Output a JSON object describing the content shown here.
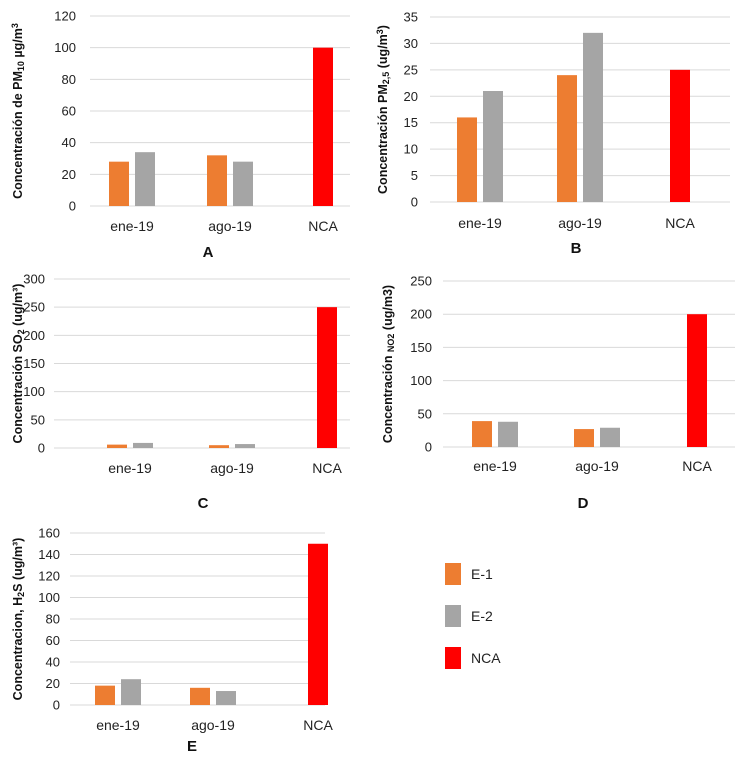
{
  "chart_data": [
    {
      "type": "bar",
      "panel_label": "A",
      "ylabel_parts": [
        {
          "text": "Concentración de PM",
          "style": ""
        },
        {
          "text": "10",
          "style": "sub"
        },
        {
          "text": " µg/m",
          "style": ""
        },
        {
          "text": "3",
          "style": "sup"
        }
      ],
      "categories": [
        "ene-19",
        "ago-19",
        "NCA"
      ],
      "series": [
        {
          "name": "E-1",
          "values": [
            28,
            32,
            null
          ]
        },
        {
          "name": "E-2",
          "values": [
            34,
            28,
            null
          ]
        },
        {
          "name": "NCA",
          "values": [
            null,
            null,
            100
          ]
        }
      ],
      "ylim": [
        0,
        120
      ],
      "yticks": [
        0,
        20,
        40,
        60,
        80,
        100,
        120
      ],
      "grid": true
    },
    {
      "type": "bar",
      "panel_label": "B",
      "ylabel_parts": [
        {
          "text": "Concentración PM",
          "style": ""
        },
        {
          "text": "2,5",
          "style": "sub"
        },
        {
          "text": " (ug/m",
          "style": ""
        },
        {
          "text": "3",
          "style": "sup"
        },
        {
          "text": ")",
          "style": ""
        }
      ],
      "categories": [
        "ene-19",
        "ago-19",
        "NCA"
      ],
      "series": [
        {
          "name": "E-1",
          "values": [
            16,
            24,
            null
          ]
        },
        {
          "name": "E-2",
          "values": [
            21,
            32,
            null
          ]
        },
        {
          "name": "NCA",
          "values": [
            null,
            null,
            25
          ]
        }
      ],
      "ylim": [
        0,
        35
      ],
      "yticks": [
        0,
        5,
        10,
        15,
        20,
        25,
        30,
        35
      ],
      "grid": true
    },
    {
      "type": "bar",
      "panel_label": "C",
      "ylabel_parts": [
        {
          "text": "Concentración SO",
          "style": ""
        },
        {
          "text": "2",
          "style": "sub"
        },
        {
          "text": " (ug/m³)",
          "style": ""
        }
      ],
      "categories": [
        "ene-19",
        "ago-19",
        "NCA"
      ],
      "series": [
        {
          "name": "E-1",
          "values": [
            6,
            5,
            null
          ]
        },
        {
          "name": "E-2",
          "values": [
            9,
            7,
            null
          ]
        },
        {
          "name": "NCA",
          "values": [
            null,
            null,
            250
          ]
        }
      ],
      "ylim": [
        0,
        300
      ],
      "yticks": [
        0,
        50,
        100,
        150,
        200,
        250,
        300
      ],
      "grid": true
    },
    {
      "type": "bar",
      "panel_label": "D",
      "ylabel_parts": [
        {
          "text": "Concentración ",
          "style": ""
        },
        {
          "text": "NO2",
          "style": "sub"
        },
        {
          "text": " (ug/m3)",
          "style": ""
        }
      ],
      "categories": [
        "ene-19",
        "ago-19",
        "NCA"
      ],
      "series": [
        {
          "name": "E-1",
          "values": [
            39,
            27,
            null
          ]
        },
        {
          "name": "E-2",
          "values": [
            38,
            29,
            null
          ]
        },
        {
          "name": "NCA",
          "values": [
            null,
            null,
            200
          ]
        }
      ],
      "ylim": [
        0,
        250
      ],
      "yticks": [
        0,
        50,
        100,
        150,
        200,
        250
      ],
      "grid": true
    },
    {
      "type": "bar",
      "panel_label": "E",
      "ylabel_parts": [
        {
          "text": "Concentracion, H",
          "style": ""
        },
        {
          "text": "2",
          "style": "sub"
        },
        {
          "text": "S (ug/m³)",
          "style": ""
        }
      ],
      "categories": [
        "ene-19",
        "ago-19",
        "NCA"
      ],
      "series": [
        {
          "name": "E-1",
          "values": [
            18,
            16,
            null
          ]
        },
        {
          "name": "E-2",
          "values": [
            24,
            13,
            null
          ]
        },
        {
          "name": "NCA",
          "values": [
            null,
            null,
            150
          ]
        }
      ],
      "ylim": [
        0,
        160
      ],
      "yticks": [
        0,
        20,
        40,
        60,
        80,
        100,
        120,
        140,
        160
      ],
      "grid": true
    }
  ],
  "legend": {
    "placement": "right of panel E",
    "items": [
      {
        "label": "E-1",
        "color": "#ed7d31"
      },
      {
        "label": "E-2",
        "color": "#a5a5a5"
      },
      {
        "label": "NCA",
        "color": "#ff0000"
      }
    ]
  },
  "colors": {
    "E-1": "#ed7d31",
    "E-2": "#a5a5a5",
    "NCA": "#ff0000"
  }
}
